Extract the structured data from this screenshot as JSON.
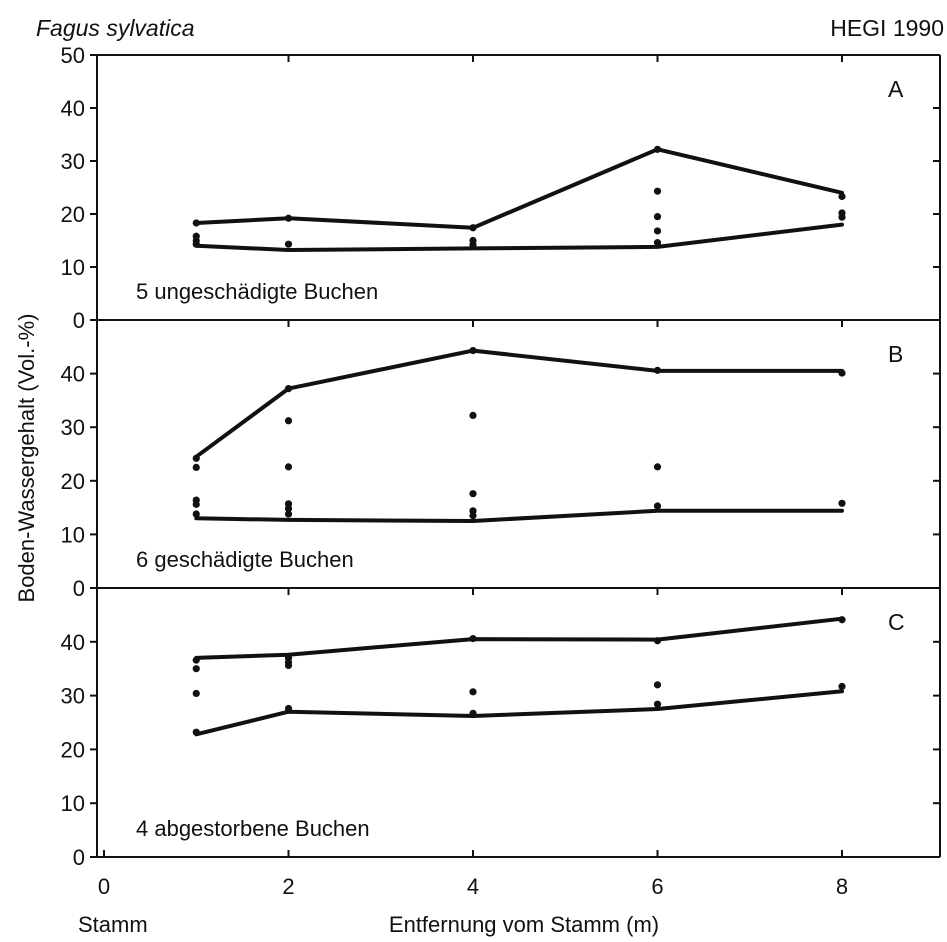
{
  "header": {
    "species": "Fagus sylvatica",
    "source": "HEGI 1990"
  },
  "chart_data": {
    "type": "line",
    "xlabel": "Entfernung vom Stamm (m)",
    "x_origin_label": "Stamm",
    "ylabel": "Boden-Wassergehalt (Vol.-%)",
    "x_ticks": [
      0,
      2,
      4,
      6,
      8
    ],
    "xlim": [
      0,
      9
    ],
    "panels": [
      {
        "letter": "A",
        "label": "5 ungeschädigte Buchen",
        "ylim": [
          0,
          50
        ],
        "y_ticks": [
          0,
          10,
          20,
          30,
          40,
          50
        ],
        "series": [
          {
            "role": "max",
            "x": [
              1,
              2,
              4,
              6,
              8
            ],
            "y": [
              18.3,
              19.2,
              17.4,
              32.2,
              24
            ]
          },
          {
            "role": "min",
            "x": [
              1,
              2,
              4,
              6,
              8
            ],
            "y": [
              14,
              13.2,
              13.5,
              13.8,
              18
            ]
          }
        ],
        "points": [
          {
            "x": 1,
            "y": 18.3
          },
          {
            "x": 1,
            "y": 15.8
          },
          {
            "x": 1,
            "y": 15
          },
          {
            "x": 1,
            "y": 14.3
          },
          {
            "x": 2,
            "y": 19.2
          },
          {
            "x": 2,
            "y": 14.3
          },
          {
            "x": 4,
            "y": 17.4
          },
          {
            "x": 4,
            "y": 15
          },
          {
            "x": 4,
            "y": 14.2
          },
          {
            "x": 6,
            "y": 32.2
          },
          {
            "x": 6,
            "y": 24.3
          },
          {
            "x": 6,
            "y": 19.5
          },
          {
            "x": 6,
            "y": 16.8
          },
          {
            "x": 6,
            "y": 14.6
          },
          {
            "x": 8,
            "y": 23.3
          },
          {
            "x": 8,
            "y": 20.2
          },
          {
            "x": 8,
            "y": 19.4
          }
        ]
      },
      {
        "letter": "B",
        "label": "6 geschädigte Buchen",
        "ylim": [
          0,
          50
        ],
        "y_ticks": [
          0,
          10,
          20,
          30,
          40
        ],
        "series": [
          {
            "role": "max",
            "x": [
              1,
              2,
              4,
              6,
              8
            ],
            "y": [
              24.5,
              37.2,
              44.3,
              40.5,
              40.5
            ]
          },
          {
            "role": "min",
            "x": [
              1,
              2,
              4,
              6,
              8
            ],
            "y": [
              13,
              12.7,
              12.5,
              14.4,
              14.4
            ]
          }
        ],
        "points": [
          {
            "x": 1,
            "y": 24.2
          },
          {
            "x": 1,
            "y": 22.5
          },
          {
            "x": 1,
            "y": 16.4
          },
          {
            "x": 1,
            "y": 15.6
          },
          {
            "x": 1,
            "y": 13.8
          },
          {
            "x": 2,
            "y": 37.2
          },
          {
            "x": 2,
            "y": 31.2
          },
          {
            "x": 2,
            "y": 22.6
          },
          {
            "x": 2,
            "y": 15.7
          },
          {
            "x": 2,
            "y": 14.8
          },
          {
            "x": 2,
            "y": 13.8
          },
          {
            "x": 4,
            "y": 44.3
          },
          {
            "x": 4,
            "y": 32.2
          },
          {
            "x": 4,
            "y": 17.6
          },
          {
            "x": 4,
            "y": 14.4
          },
          {
            "x": 4,
            "y": 13.5
          },
          {
            "x": 6,
            "y": 40.6
          },
          {
            "x": 6,
            "y": 22.6
          },
          {
            "x": 6,
            "y": 15.3
          },
          {
            "x": 8,
            "y": 40.1
          },
          {
            "x": 8,
            "y": 15.8
          }
        ]
      },
      {
        "letter": "C",
        "label": "4 abgestorbene Buchen",
        "ylim": [
          0,
          50
        ],
        "y_ticks": [
          0,
          10,
          20,
          30,
          40
        ],
        "series": [
          {
            "role": "max",
            "x": [
              1,
              2,
              4,
              6,
              8
            ],
            "y": [
              37,
              37.6,
              40.5,
              40.4,
              44.3
            ]
          },
          {
            "role": "min",
            "x": [
              1,
              2,
              4,
              6,
              8
            ],
            "y": [
              22.8,
              27,
              26.2,
              27.5,
              30.8
            ]
          }
        ],
        "points": [
          {
            "x": 1,
            "y": 36.6
          },
          {
            "x": 1,
            "y": 35
          },
          {
            "x": 1,
            "y": 30.4
          },
          {
            "x": 1,
            "y": 23.2
          },
          {
            "x": 2,
            "y": 37
          },
          {
            "x": 2,
            "y": 36.2
          },
          {
            "x": 2,
            "y": 35.6
          },
          {
            "x": 2,
            "y": 27.6
          },
          {
            "x": 4,
            "y": 40.6
          },
          {
            "x": 4,
            "y": 30.7
          },
          {
            "x": 4,
            "y": 26.7
          },
          {
            "x": 6,
            "y": 40.2
          },
          {
            "x": 6,
            "y": 32
          },
          {
            "x": 6,
            "y": 28.4
          },
          {
            "x": 8,
            "y": 44.1
          },
          {
            "x": 8,
            "y": 31.7
          }
        ]
      }
    ]
  }
}
